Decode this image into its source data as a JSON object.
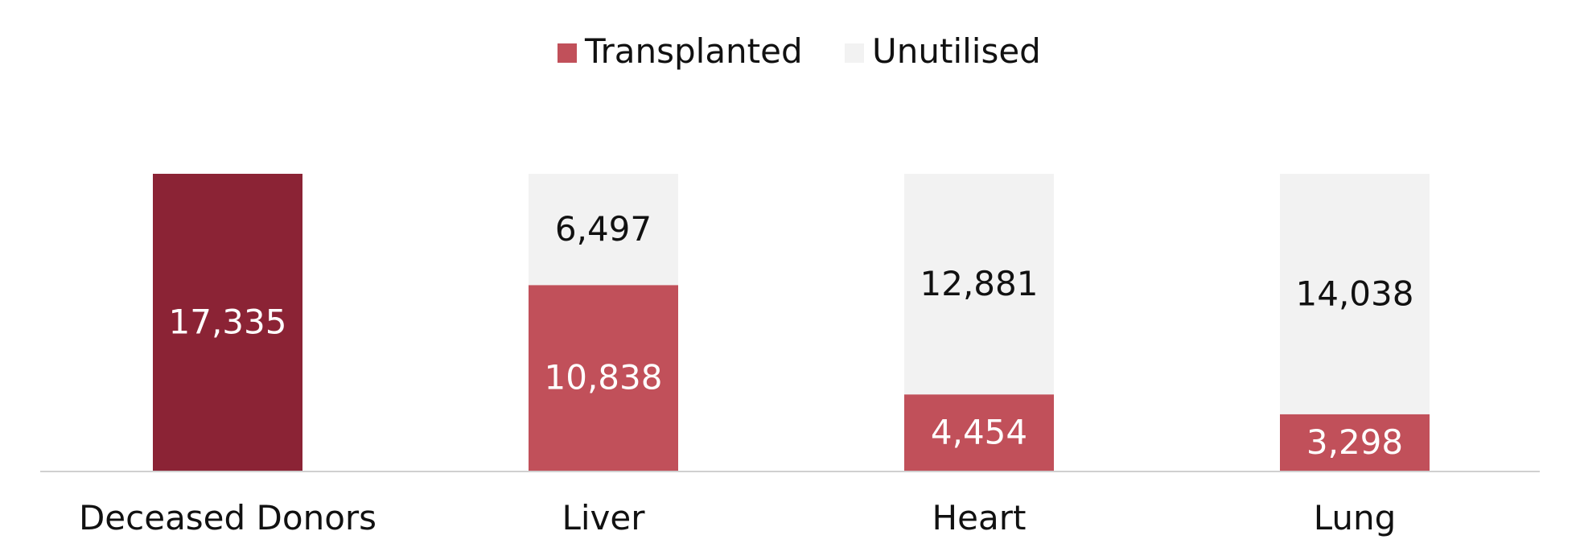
{
  "chart_data": {
    "type": "bar",
    "stacked": true,
    "categories": [
      "Deceased Donors",
      "Liver",
      "Heart",
      "Lung"
    ],
    "legend": {
      "position": "top-center",
      "entries": [
        {
          "label": "Transplanted",
          "color": "#c1505a"
        },
        {
          "label": "Unutilised",
          "color": "#f2f2f2"
        }
      ]
    },
    "totals": [
      {
        "category": "Deceased Donors",
        "value": 17335,
        "label": "17,335",
        "color": "#8b2335"
      }
    ],
    "series": [
      {
        "name": "Transplanted",
        "color": "#c1505a",
        "values": [
          null,
          10838,
          4454,
          3298
        ],
        "labels": [
          "",
          "10,838",
          "4,454",
          "3,298"
        ]
      },
      {
        "name": "Unutilised",
        "color": "#f2f2f2",
        "values": [
          null,
          6497,
          12881,
          14038
        ],
        "labels": [
          "",
          "6,497",
          "12,881",
          "14,038"
        ]
      }
    ],
    "ylim": [
      0,
      17335
    ],
    "grid": false,
    "title": "",
    "xlabel": "",
    "ylabel": ""
  }
}
